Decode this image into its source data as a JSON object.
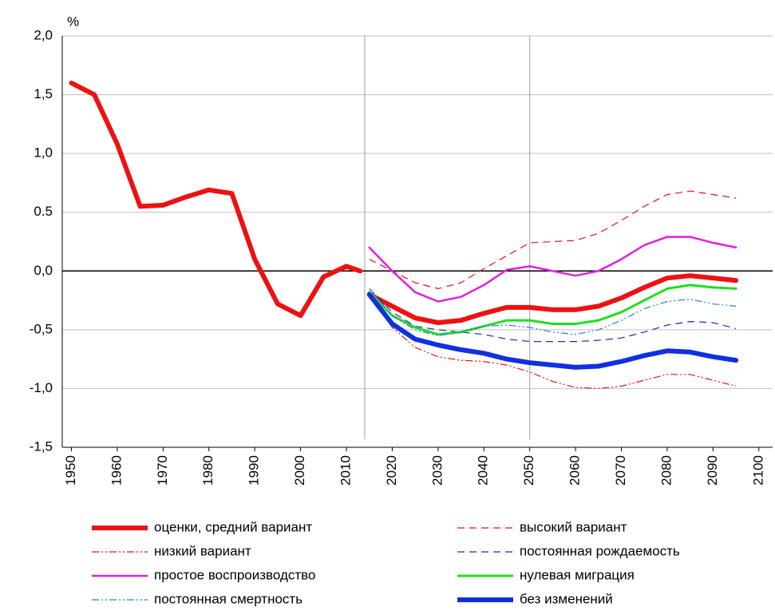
{
  "chart_data": {
    "type": "line",
    "y_label": "%",
    "xlim": [
      1948,
      2103
    ],
    "ylim": [
      -1.5,
      2.0
    ],
    "xticks": [
      1950,
      1960,
      1970,
      1980,
      1990,
      2000,
      2010,
      2020,
      2030,
      2040,
      2050,
      2060,
      2070,
      2080,
      2090,
      2100
    ],
    "yticks": [
      {
        "value": -1.5,
        "label": "-1,5"
      },
      {
        "value": -1.0,
        "label": "-1,0"
      },
      {
        "value": -0.5,
        "label": "-0,5"
      },
      {
        "value": 0,
        "label": "0,0"
      },
      {
        "value": 0.5,
        "label": "0.5"
      },
      {
        "value": 1.0,
        "label": "1,0"
      },
      {
        "value": 1.5,
        "label": "1,5"
      },
      {
        "value": 2.0,
        "label": "2,0"
      }
    ],
    "grid": true,
    "vlines": [
      2014,
      2050
    ],
    "series": [
      {
        "name": "оценки,  средний вариант",
        "color": "#ee1111",
        "width": 6,
        "dash": "none",
        "x": [
          1950,
          1955,
          1960,
          1965,
          1970,
          1975,
          1980,
          1985,
          1990,
          1995,
          2000,
          2005,
          2010,
          2013,
          2014,
          2015,
          2020,
          2025,
          2030,
          2035,
          2040,
          2045,
          2050,
          2055,
          2060,
          2065,
          2070,
          2075,
          2080,
          2085,
          2090,
          2095
        ],
        "values": [
          1.6,
          1.5,
          1.08,
          0.55,
          0.56,
          0.63,
          0.69,
          0.66,
          0.1,
          -0.28,
          -0.38,
          -0.05,
          0.04,
          0.0,
          null,
          -0.2,
          -0.3,
          -0.4,
          -0.44,
          -0.42,
          -0.36,
          -0.31,
          -0.31,
          -0.33,
          -0.33,
          -0.3,
          -0.23,
          -0.14,
          -0.06,
          -0.04,
          -0.06,
          -0.08
        ]
      },
      {
        "name": "высокий вариант",
        "color": "#ee1111",
        "width": 1.2,
        "dash": "9 6",
        "x": [
          2015,
          2020,
          2025,
          2030,
          2035,
          2040,
          2045,
          2050,
          2055,
          2060,
          2065,
          2070,
          2075,
          2080,
          2085,
          2090,
          2095
        ],
        "values": [
          0.1,
          0.0,
          -0.1,
          -0.15,
          -0.1,
          0.02,
          0.13,
          0.24,
          0.25,
          0.26,
          0.32,
          0.43,
          0.55,
          0.65,
          0.68,
          0.65,
          0.62
        ]
      },
      {
        "name": "низкий вариант",
        "color": "#ee1111",
        "width": 1.2,
        "dash": "9 3 2 3 2 3",
        "x": [
          2015,
          2020,
          2025,
          2030,
          2035,
          2040,
          2045,
          2050,
          2055,
          2060,
          2065,
          2070,
          2075,
          2080,
          2085,
          2090,
          2095
        ],
        "values": [
          -0.2,
          -0.48,
          -0.65,
          -0.73,
          -0.76,
          -0.77,
          -0.8,
          -0.86,
          -0.94,
          -0.99,
          -1.0,
          -0.98,
          -0.93,
          -0.88,
          -0.88,
          -0.93,
          -0.98
        ]
      },
      {
        "name": "постоянная рождаемость",
        "color": "#1a2fb8",
        "width": 1.2,
        "dash": "9 6",
        "x": [
          2015,
          2020,
          2025,
          2030,
          2035,
          2040,
          2045,
          2050,
          2055,
          2060,
          2065,
          2070,
          2075,
          2080,
          2085,
          2090,
          2095
        ],
        "values": [
          -0.15,
          -0.35,
          -0.47,
          -0.5,
          -0.52,
          -0.54,
          -0.58,
          -0.6,
          -0.6,
          -0.6,
          -0.59,
          -0.57,
          -0.52,
          -0.46,
          -0.43,
          -0.44,
          -0.49
        ]
      },
      {
        "name": "простое воспроизводство",
        "color": "#e020e0",
        "width": 2.5,
        "dash": "none",
        "x": [
          2015,
          2020,
          2025,
          2030,
          2035,
          2040,
          2045,
          2050,
          2055,
          2060,
          2065,
          2070,
          2075,
          2080,
          2085,
          2090,
          2095
        ],
        "values": [
          0.2,
          0.0,
          -0.18,
          -0.26,
          -0.22,
          -0.12,
          0.01,
          0.04,
          0.0,
          -0.04,
          0.0,
          0.1,
          0.22,
          0.29,
          0.29,
          0.24,
          0.2
        ]
      },
      {
        "name": "нулевая миграция",
        "color": "#22dd22",
        "width": 3,
        "dash": "none",
        "x": [
          2015,
          2020,
          2025,
          2030,
          2035,
          2040,
          2045,
          2050,
          2055,
          2060,
          2065,
          2070,
          2075,
          2080,
          2085,
          2090,
          2095
        ],
        "values": [
          -0.18,
          -0.38,
          -0.48,
          -0.54,
          -0.52,
          -0.47,
          -0.42,
          -0.42,
          -0.45,
          -0.45,
          -0.42,
          -0.35,
          -0.25,
          -0.15,
          -0.12,
          -0.14,
          -0.15
        ]
      },
      {
        "name": "постоянная смертность",
        "color": "#2a7fd8",
        "width": 1.2,
        "dash": "9 3 2 3 2 3",
        "x": [
          2015,
          2020,
          2025,
          2030,
          2035,
          2040,
          2045,
          2050,
          2055,
          2060,
          2065,
          2070,
          2075,
          2080,
          2085,
          2090,
          2095
        ],
        "values": [
          -0.15,
          -0.38,
          -0.5,
          -0.55,
          -0.52,
          -0.47,
          -0.46,
          -0.48,
          -0.52,
          -0.54,
          -0.5,
          -0.42,
          -0.32,
          -0.26,
          -0.24,
          -0.28,
          -0.3
        ]
      },
      {
        "name": "без изменений",
        "color": "#1030e0",
        "width": 6,
        "dash": "none",
        "x": [
          2015,
          2020,
          2025,
          2030,
          2035,
          2040,
          2045,
          2050,
          2055,
          2060,
          2065,
          2070,
          2075,
          2080,
          2085,
          2090,
          2095
        ],
        "values": [
          -0.2,
          -0.45,
          -0.58,
          -0.63,
          -0.67,
          -0.7,
          -0.75,
          -0.78,
          -0.8,
          -0.82,
          -0.81,
          -0.77,
          -0.72,
          -0.68,
          -0.69,
          -0.73,
          -0.76
        ]
      }
    ]
  }
}
